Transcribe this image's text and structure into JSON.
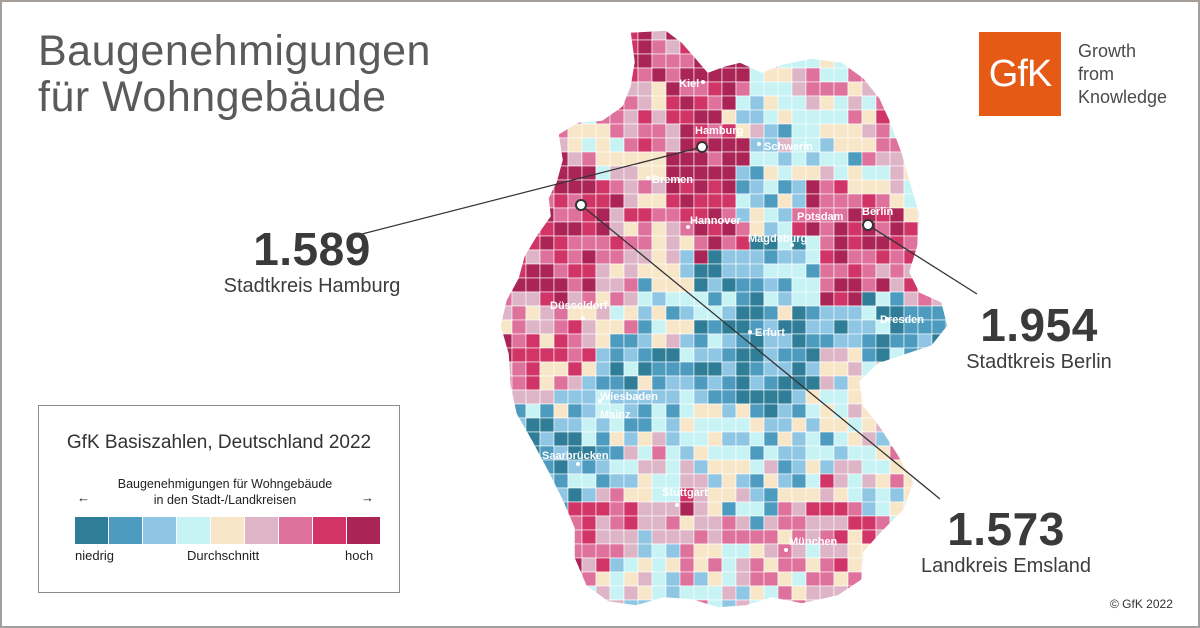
{
  "title_lines": [
    "Baugenehmigungen",
    "für Wohngebäude"
  ],
  "logo": {
    "mark": "GfK",
    "tagline": [
      "Growth",
      "from",
      "Knowledge"
    ],
    "color": "#e55a15"
  },
  "callouts": [
    {
      "value": "1.589",
      "label": "Stadtkreis Hamburg"
    },
    {
      "value": "1.954",
      "label": "Stadtkreis Berlin"
    },
    {
      "value": "1.573",
      "label": "Landkreis Emsland"
    }
  ],
  "cities": [
    "Kiel",
    "Hamburg",
    "Schwerin",
    "Bremen",
    "Hannover",
    "Potsdam",
    "Berlin",
    "Magdeburg",
    "Düsseldorf",
    "Erfurt",
    "Dresden",
    "Wiesbaden",
    "Mainz",
    "Saarbrücken",
    "Stuttgart",
    "München"
  ],
  "legend": {
    "title": "GfK Basiszahlen, Deutschland 2022",
    "subtitle": [
      "Baugenehmigungen für Wohngebäude",
      "in den Stadt-/Landkreisen"
    ],
    "arrow_left": "←",
    "arrow_right": "→",
    "low_label": "niedrig",
    "mid_label": "Durchschnitt",
    "high_label": "hoch",
    "colors": [
      "#2f7d96",
      "#4d9cc0",
      "#8fc6e4",
      "#c8f3f5",
      "#f8e6c8",
      "#ddb5c6",
      "#df719d",
      "#d13466",
      "#ab2456"
    ]
  },
  "copyright": "© GfK 2022"
}
